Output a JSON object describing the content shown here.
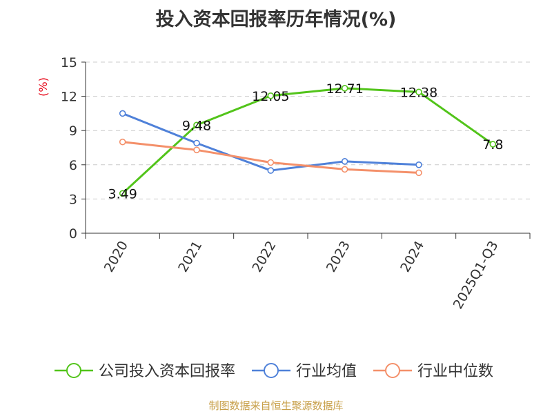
{
  "chart_data": {
    "type": "line",
    "title": "投入资本回报率历年情况(%)",
    "ylabel": "(%)",
    "xlabel": "",
    "categories": [
      "2020",
      "2021",
      "2022",
      "2023",
      "2024",
      "2025Q1-Q3"
    ],
    "ylim": [
      0,
      15
    ],
    "yticks": [
      0,
      3,
      6,
      9,
      12,
      15
    ],
    "grid": true,
    "legend_position": "bottom",
    "series": [
      {
        "name": "公司投入资本回报率",
        "color": "#52c41a",
        "values": [
          3.49,
          9.48,
          12.05,
          12.71,
          12.38,
          7.8
        ],
        "data_labels": [
          "3.49",
          "9.48",
          "12.05",
          "12.71",
          "12.38",
          "7.8"
        ]
      },
      {
        "name": "行业均值",
        "color": "#4f81d9",
        "values": [
          10.5,
          7.9,
          5.5,
          6.3,
          6.0,
          null
        ]
      },
      {
        "name": "行业中位数",
        "color": "#f4906a",
        "values": [
          8.0,
          7.3,
          6.2,
          5.6,
          5.3,
          null
        ]
      }
    ]
  },
  "source_note": "制图数据来自恒生聚源数据库"
}
